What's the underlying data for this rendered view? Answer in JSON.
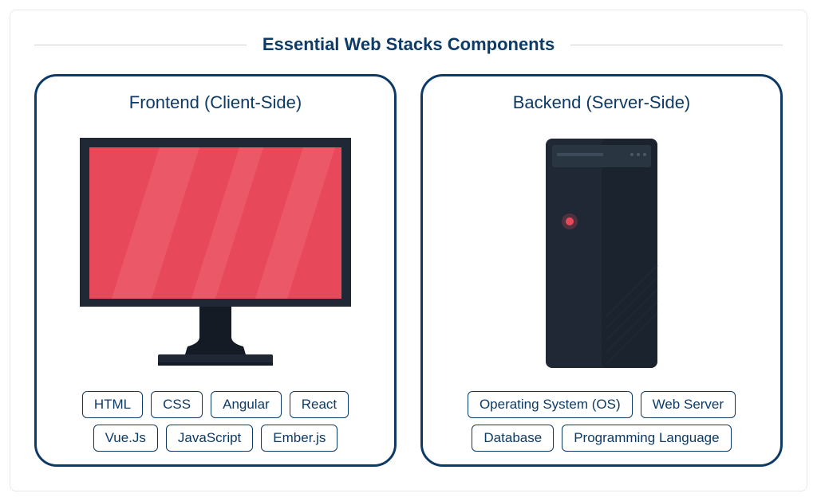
{
  "title": "Essential Web Stacks Components",
  "colors": {
    "text": "#0e3a66",
    "border": "#0e3a66",
    "tag_border": "#0e3a66",
    "tag_text": "#0e3a66",
    "monitor_frame": "#1f2834",
    "monitor_frame_dark": "#151b24",
    "screen": "#e8495a",
    "screen_highlight": "#ef6c79",
    "server_body": "#1f2834",
    "server_body_dark": "#151b24",
    "server_light": "#e8495a",
    "server_top": "#2a3542"
  },
  "frontend": {
    "label": "Frontend (Client-Side)",
    "tags": [
      "HTML",
      "CSS",
      "Angular",
      "React",
      "Vue.Js",
      "JavaScript",
      "Ember.js"
    ]
  },
  "backend": {
    "label": "Backend (Server-Side)",
    "tags": [
      "Operating System (OS)",
      "Web Server",
      "Database",
      "Programming Language"
    ]
  }
}
